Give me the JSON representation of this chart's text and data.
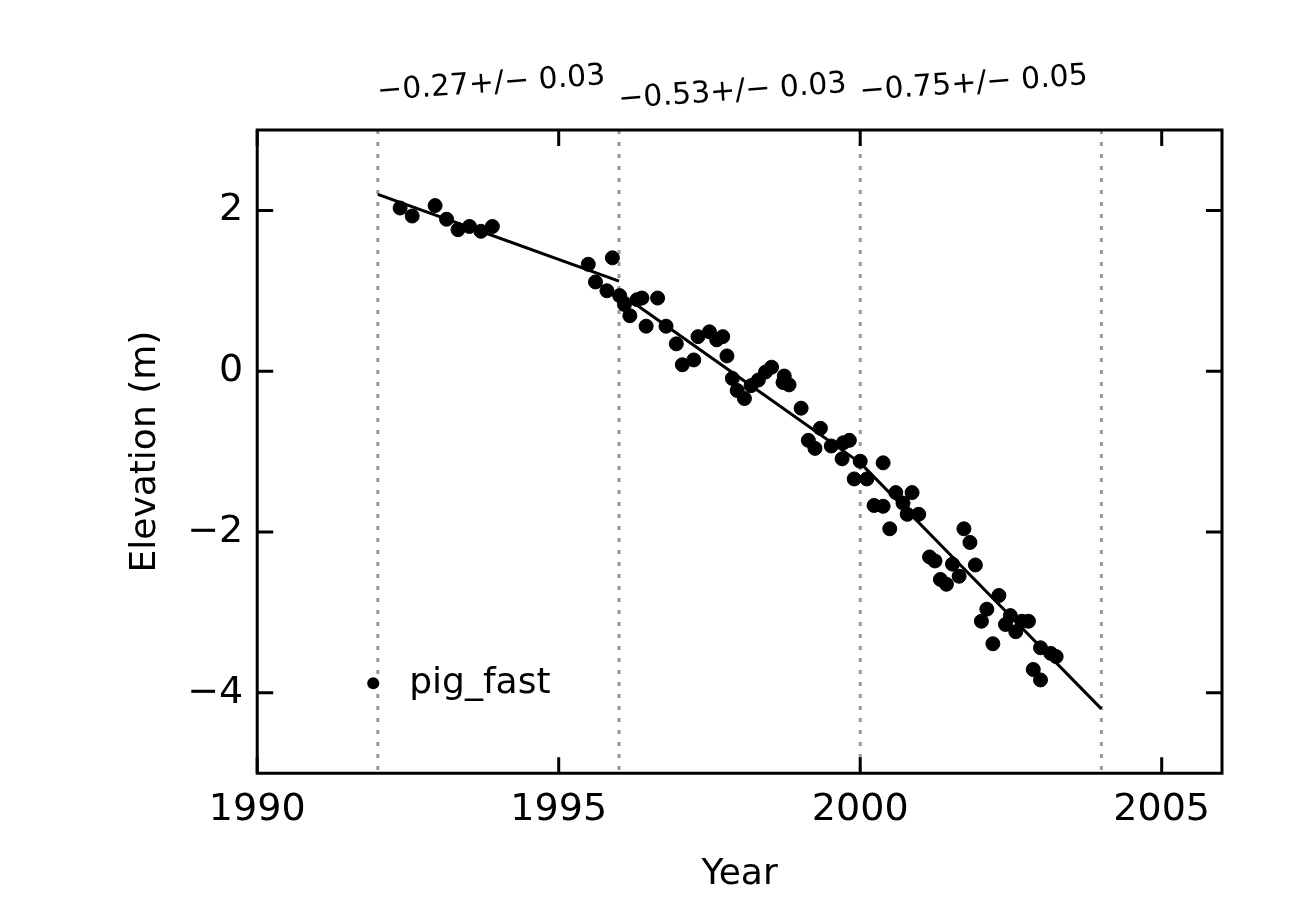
{
  "chart_data": {
    "type": "scatter",
    "xlabel": "Year",
    "ylabel": "Elevation (m)",
    "xlim": [
      1990,
      2006
    ],
    "ylim": [
      -5,
      3
    ],
    "xticks": [
      1990,
      1995,
      2000,
      2005
    ],
    "yticks": [
      -4,
      -2,
      0,
      2
    ],
    "marker": "circle",
    "legend": "bottom left",
    "annotations": [
      "−0.27+/− 0.03",
      "−0.53+/− 0.03",
      "−0.75+/− 0.05"
    ],
    "ref_lines": [
      {
        "axis": "x",
        "value": 1992,
        "color": "#999999",
        "line_style": "dotted"
      },
      {
        "axis": "x",
        "value": 1996,
        "color": "#999999",
        "line_style": "dotted"
      },
      {
        "axis": "x",
        "value": 2000,
        "color": "#999999",
        "line_style": "dotted"
      },
      {
        "axis": "x",
        "value": 2004,
        "color": "#999999",
        "line_style": "dotted"
      }
    ],
    "series": [
      {
        "name": "pig_fast",
        "color": "#000000",
        "x": [
          1992.37,
          1992.57,
          1992.95,
          1993.14,
          1993.33,
          1993.52,
          1993.71,
          1993.9,
          1995.49,
          1995.61,
          1995.8,
          1995.89,
          1996.01,
          1996.09,
          1996.18,
          1996.3,
          1996.45,
          1996.38,
          1996.64,
          1996.78,
          1996.95,
          1997.05,
          1997.24,
          1997.31,
          1997.5,
          1997.62,
          1997.72,
          1997.79,
          1997.88,
          1997.96,
          1998.08,
          1998.19,
          1998.31,
          1998.43,
          1998.53,
          1998.72,
          1998.82,
          1998.74,
          1999.02,
          1999.14,
          1999.25,
          1999.34,
          1999.52,
          1999.72,
          1999.7,
          1999.82,
          2000.0,
          1999.9,
          2000.11,
          2000.23,
          2000.38,
          2000.38,
          2000.49,
          2000.59,
          2000.71,
          2000.78,
          2000.86,
          2000.97,
          2001.15,
          2001.24,
          2001.33,
          2001.43,
          2001.53,
          2001.64,
          2001.72,
          2001.82,
          2001.91,
          2002.01,
          2002.1,
          2002.2,
          2002.3,
          2002.41,
          2002.49,
          2002.58,
          2002.68,
          2002.79,
          2002.87,
          2002.99,
          2002.99,
          2003.16,
          2003.25
        ],
        "values": [
          2.03,
          1.93,
          2.06,
          1.89,
          1.76,
          1.8,
          1.74,
          1.8,
          1.33,
          1.11,
          1.0,
          1.41,
          0.94,
          0.83,
          0.69,
          0.89,
          0.56,
          0.91,
          0.91,
          0.56,
          0.34,
          0.08,
          0.14,
          0.43,
          0.49,
          0.39,
          0.43,
          0.19,
          -0.09,
          -0.24,
          -0.34,
          -0.18,
          -0.11,
          -0.01,
          0.05,
          -0.14,
          -0.17,
          -0.06,
          -0.46,
          -0.86,
          -0.96,
          -0.71,
          -0.93,
          -0.89,
          -1.09,
          -0.86,
          -1.12,
          -1.34,
          -1.34,
          -1.67,
          -1.68,
          -1.14,
          -1.96,
          -1.51,
          -1.64,
          -1.78,
          -1.51,
          -1.78,
          -2.31,
          -2.36,
          -2.59,
          -2.65,
          -2.4,
          -2.55,
          -1.96,
          -2.13,
          -2.41,
          -3.11,
          -2.96,
          -3.39,
          -2.79,
          -3.15,
          -3.04,
          -3.24,
          -3.11,
          -3.11,
          -3.71,
          -3.84,
          -3.44,
          -3.51,
          -3.55
        ]
      },
      {
        "type": "line",
        "marker": "none",
        "color": "#000000",
        "x": [
          1992,
          1996
        ],
        "values": [
          2.2,
          1.12
        ]
      },
      {
        "type": "line",
        "marker": "none",
        "color": "#000000",
        "x": [
          1996,
          2000,
          2004
        ],
        "values": [
          0.98,
          -1.14,
          -4.2
        ]
      }
    ]
  }
}
